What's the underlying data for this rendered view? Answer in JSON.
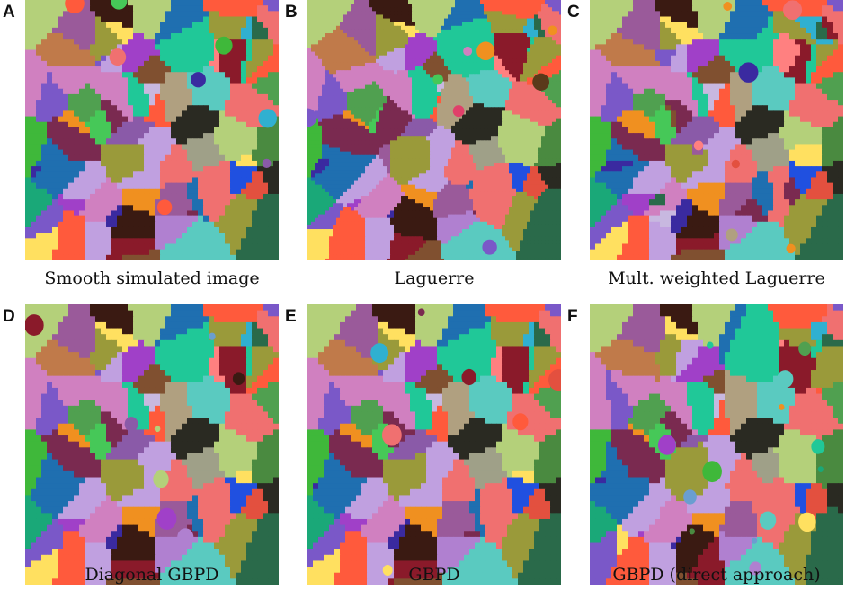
{
  "figure": {
    "panels": [
      {
        "letter": "A",
        "caption": "Smooth simulated image",
        "variant": "smooth"
      },
      {
        "letter": "B",
        "caption": "Laguerre",
        "variant": "laguerre"
      },
      {
        "letter": "C",
        "caption": "Mult. weighted Laguerre",
        "variant": "mwl"
      },
      {
        "letter": "D",
        "caption": "Diagonal GBPD",
        "variant": "smooth"
      },
      {
        "letter": "E",
        "caption": "GBPD",
        "variant": "smooth"
      },
      {
        "letter": "F",
        "caption": "GBPD (direct approach)",
        "variant": "direct"
      }
    ],
    "grain_colors": [
      "#7a58c8",
      "#3fb83a",
      "#ff5a3c",
      "#1f6fb0",
      "#b0a080",
      "#8a1a2a",
      "#46c858",
      "#6a9ed0",
      "#9a5a9a",
      "#e3503f",
      "#5a3a1a",
      "#c07a4a",
      "#1aa878",
      "#9fa088",
      "#3a1a12",
      "#d080c0",
      "#ff8080",
      "#3a2aa0",
      "#f07070",
      "#2a2a22",
      "#c8b8e0",
      "#2a6a4a",
      "#30b0d0",
      "#ff2020",
      "#9a9a3a",
      "#b4d07a",
      "#4a8a40",
      "#8a5aa8",
      "#f09020",
      "#7a2a50",
      "#20c898",
      "#5acac0",
      "#a040c8",
      "#e0406a",
      "#c0a0e0",
      "#2050e0",
      "#ffe060",
      "#50a050",
      "#805030",
      "#b080d0"
    ]
  }
}
